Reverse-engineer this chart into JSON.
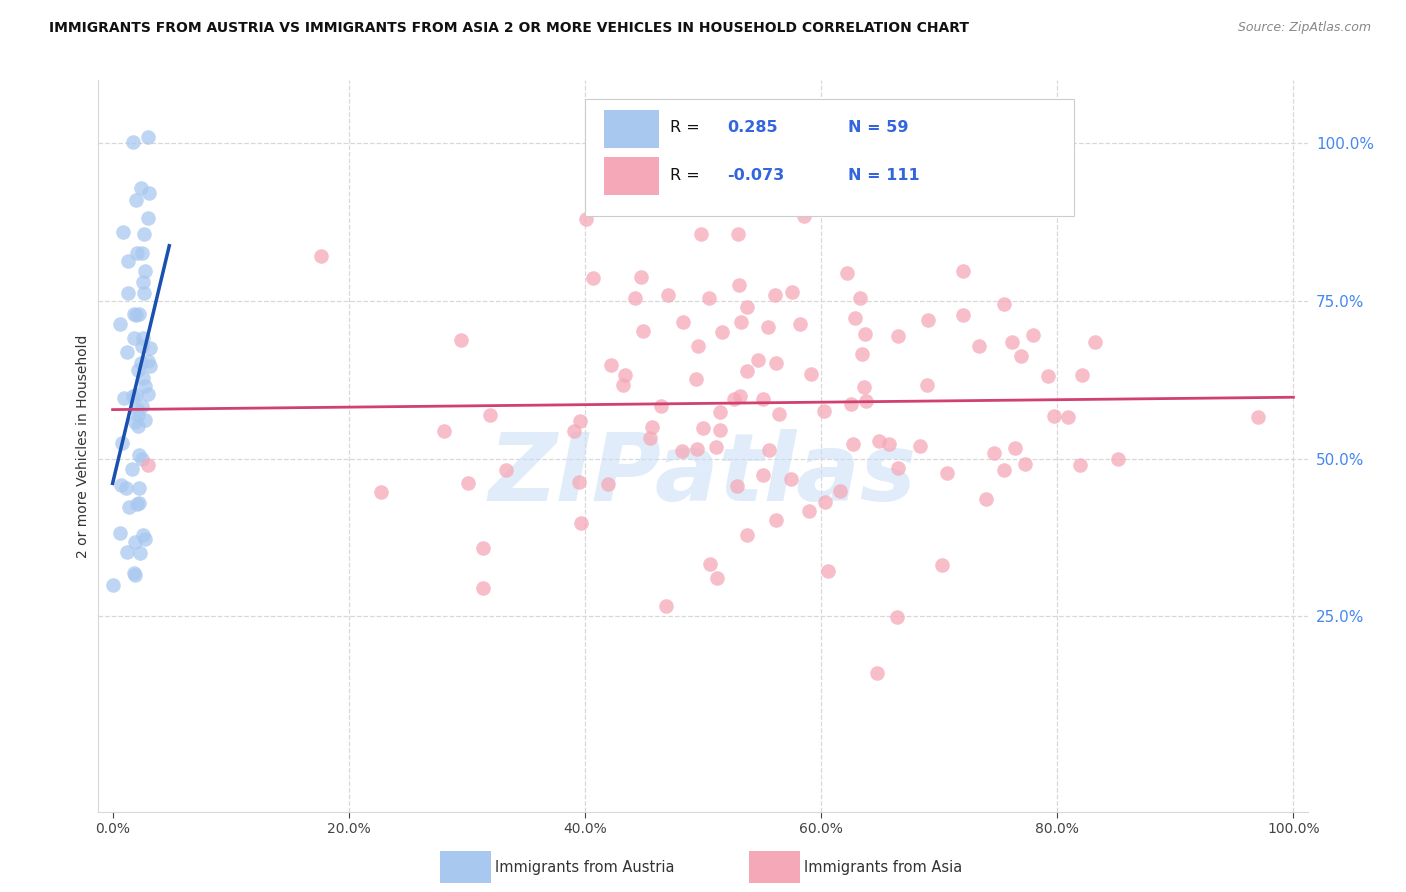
{
  "title": "IMMIGRANTS FROM AUSTRIA VS IMMIGRANTS FROM ASIA 2 OR MORE VEHICLES IN HOUSEHOLD CORRELATION CHART",
  "source": "Source: ZipAtlas.com",
  "ylabel": "2 or more Vehicles in Household",
  "legend_label_austria": "Immigrants from Austria",
  "legend_label_asia": "Immigrants from Asia",
  "R_austria": 0.285,
  "N_austria": 59,
  "R_asia": -0.073,
  "N_asia": 111,
  "color_austria": "#a8c8f0",
  "color_asia": "#f5a8b8",
  "trendline_color_austria": "#1a50b0",
  "trendline_color_asia": "#d04070",
  "watermark_text": "ZIPatlas",
  "watermark_color": "#c8ddf5",
  "grid_color": "#d8d8d8",
  "right_tick_color": "#4488ee",
  "title_color": "#111111",
  "source_color": "#888888",
  "ylabel_color": "#333333",
  "legend_text_color": "#3366dd",
  "legend_R_color": "#111111",
  "xlim": [
    -0.012,
    1.012
  ],
  "ylim": [
    -0.06,
    1.1
  ],
  "right_yticks": [
    0.25,
    0.5,
    0.75,
    1.0
  ],
  "xticks": [
    0.0,
    0.2,
    0.4,
    0.6,
    0.8,
    1.0
  ]
}
